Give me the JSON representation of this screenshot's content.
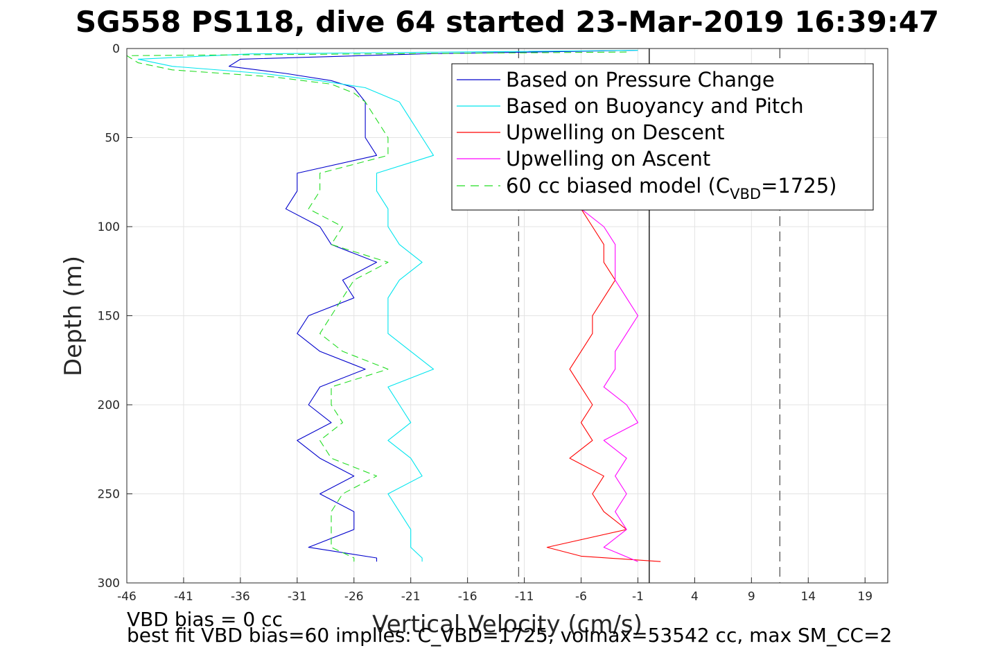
{
  "chart_data": {
    "type": "line",
    "title": "SG558 PS118, dive 64 started 23-Mar-2019 16:39:47",
    "xlabel": "Vertical Velocity (cm/s)",
    "ylabel": "Depth (m)",
    "xlim": [
      -46,
      21
    ],
    "ylim": [
      0,
      300
    ],
    "y_reversed": true,
    "x_ticks": [
      -46,
      -41,
      -36,
      -31,
      -26,
      -21,
      -16,
      -11,
      -6,
      -1,
      4,
      9,
      14,
      19
    ],
    "y_ticks": [
      0,
      50,
      100,
      150,
      200,
      250,
      300
    ],
    "grid": true,
    "legend_position": "top-right",
    "reference_lines": [
      {
        "x": -11.5,
        "style": "dashed",
        "color": "#555555"
      },
      {
        "x": 0,
        "style": "solid",
        "color": "#000000"
      },
      {
        "x": 11.5,
        "style": "dashed",
        "color": "#555555"
      }
    ],
    "series": [
      {
        "name": "Based on Pressure Change",
        "color": "#0000cc",
        "style": "solid",
        "depth": [
          1,
          3,
          6,
          10,
          14,
          18,
          22,
          30,
          40,
          50,
          60,
          70,
          80,
          90,
          100,
          110,
          120,
          130,
          140,
          150,
          160,
          170,
          180,
          190,
          200,
          210,
          220,
          230,
          240,
          250,
          260,
          270,
          280,
          286,
          288
        ],
        "x": [
          -1,
          -20,
          -36,
          -37,
          -32,
          -28,
          -26,
          -25,
          -25,
          -25,
          -24,
          -31,
          -31,
          -32,
          -29,
          -28,
          -24,
          -27,
          -26,
          -30,
          -31,
          -29,
          -25,
          -29,
          -30,
          -28,
          -31,
          -29,
          -26,
          -29,
          -26,
          -26,
          -30,
          -24,
          -24
        ]
      },
      {
        "name": "Based on Buoyancy and Pitch",
        "color": "#00e5ee",
        "style": "solid",
        "depth": [
          1,
          3,
          6,
          10,
          14,
          18,
          22,
          30,
          40,
          50,
          60,
          70,
          80,
          90,
          100,
          110,
          120,
          130,
          140,
          150,
          160,
          170,
          180,
          190,
          200,
          210,
          220,
          230,
          240,
          250,
          260,
          270,
          280,
          286,
          288
        ],
        "x": [
          -1,
          -35,
          -45,
          -42,
          -34,
          -29,
          -25,
          -22,
          -21,
          -20,
          -19,
          -24,
          -24,
          -23,
          -23,
          -22,
          -20,
          -22,
          -23,
          -23,
          -23,
          -21,
          -19,
          -23,
          -22,
          -21,
          -23,
          -21,
          -20,
          -23,
          -22,
          -21,
          -21,
          -20,
          -20
        ]
      },
      {
        "name": "Upwelling on Descent",
        "color": "#ff0000",
        "style": "solid",
        "depth": [
          90,
          100,
          110,
          120,
          130,
          140,
          150,
          160,
          170,
          180,
          190,
          200,
          210,
          220,
          230,
          240,
          250,
          260,
          270,
          280,
          285,
          288
        ],
        "x": [
          -6,
          -5,
          -4,
          -4,
          -3,
          -4,
          -5,
          -5,
          -6,
          -7,
          -6,
          -5,
          -6,
          -5,
          -7,
          -4,
          -5,
          -4,
          -2,
          -9,
          -6,
          1
        ]
      },
      {
        "name": "Upwelling on Ascent",
        "color": "#ff00ff",
        "style": "solid",
        "depth": [
          90,
          100,
          110,
          120,
          130,
          140,
          150,
          160,
          170,
          180,
          190,
          200,
          210,
          220,
          230,
          240,
          250,
          260,
          270,
          280,
          288
        ],
        "x": [
          -6,
          -4,
          -3,
          -3,
          -3,
          -2,
          -1,
          -2,
          -3,
          -3,
          -4,
          -2,
          -1,
          -4,
          -2,
          -3,
          -2,
          -3,
          -2,
          -4,
          -1
        ]
      },
      {
        "name": "60 cc biased model (C_VBD=1725)",
        "color": "#22dd22",
        "style": "dashed",
        "depth": [
          2,
          4,
          8,
          12,
          16,
          20,
          25,
          30,
          40,
          50,
          60,
          70,
          80,
          90,
          100,
          110,
          120,
          130,
          140,
          150,
          160,
          170,
          180,
          190,
          200,
          210,
          220,
          230,
          240,
          250,
          260,
          270,
          280,
          286,
          288
        ],
        "x": [
          -2,
          -46,
          -45,
          -42,
          -33,
          -28,
          -26,
          -25,
          -24,
          -23,
          -23,
          -29,
          -29,
          -30,
          -27,
          -28,
          -23,
          -26,
          -27,
          -28,
          -29,
          -27,
          -23,
          -28,
          -28,
          -27,
          -29,
          -28,
          -24,
          -27,
          -28,
          -28,
          -28,
          -26,
          -26
        ]
      }
    ],
    "legend": {
      "labels": [
        "Based on Pressure Change",
        "Based on Buoyancy and Pitch",
        "Upwelling on Descent",
        "Upwelling on Ascent"
      ],
      "model_prefix": "60 cc biased model (C",
      "model_sub": "VBD",
      "model_suffix": "=1725)"
    }
  },
  "footer": {
    "line1": "VBD bias = 0 cc",
    "line2": "best fit VBD bias=60 implies: C_VBD=1725, volmax=53542 cc, max SM_CC=2"
  }
}
